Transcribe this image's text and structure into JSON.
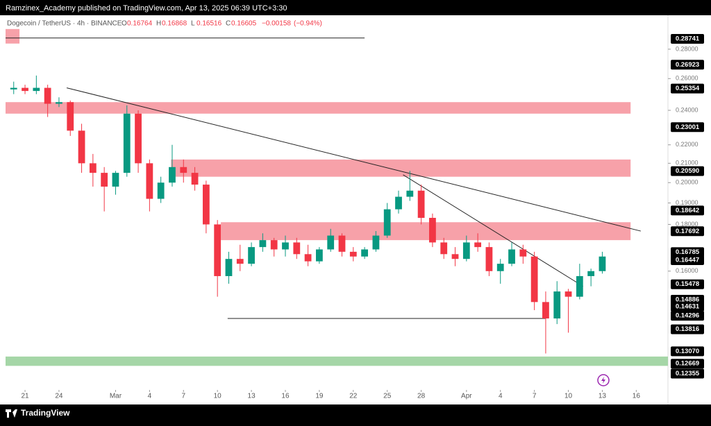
{
  "header": {
    "text": "Ramzinex_Academy published on TradingView.com, Apr 13, 2025 06:39 UTC+3:30"
  },
  "footer": {
    "brand": "TradingView"
  },
  "chart_data": {
    "type": "candlestick",
    "symbol": "Dogecoin / TetherUS · 4h · BINANCE",
    "ohlc_legend": [
      {
        "label": "O",
        "value": 0.16764
      },
      {
        "label": "H",
        "value": 0.16868
      },
      {
        "label": "L",
        "value": 0.16516
      },
      {
        "label": "C",
        "value": 0.16605
      }
    ],
    "change": {
      "value": -0.00158,
      "label": "−0.00158"
    },
    "change_pct": {
      "value": -0.94,
      "label": "(−0.94%)"
    },
    "log_scale": true,
    "up_color": "#089981",
    "down_color": "#f23645",
    "xlim": [
      -1.72,
      56.8
    ],
    "ylim": [
      0.119,
      0.305
    ],
    "xticks": [
      {
        "value": 0,
        "label": "21"
      },
      {
        "value": 3,
        "label": "24"
      },
      {
        "value": 8,
        "label": "Mar"
      },
      {
        "value": 11,
        "label": "4"
      },
      {
        "value": 14,
        "label": "7"
      },
      {
        "value": 17,
        "label": "10"
      },
      {
        "value": 20,
        "label": "13"
      },
      {
        "value": 23,
        "label": "16"
      },
      {
        "value": 26,
        "label": "19"
      },
      {
        "value": 29,
        "label": "22"
      },
      {
        "value": 32,
        "label": "25"
      },
      {
        "value": 35,
        "label": "28"
      },
      {
        "value": 39,
        "label": "Apr"
      },
      {
        "value": 42,
        "label": "4"
      },
      {
        "value": 45,
        "label": "7"
      },
      {
        "value": 48,
        "label": "10"
      },
      {
        "value": 51,
        "label": "13"
      },
      {
        "value": 54,
        "label": "16"
      }
    ],
    "yticks": [
      {
        "value": 0.28,
        "label": "0.28000"
      },
      {
        "value": 0.26,
        "label": "0.26000"
      },
      {
        "value": 0.24,
        "label": "0.24000"
      },
      {
        "value": 0.22,
        "label": "0.22000"
      },
      {
        "value": 0.21,
        "label": "0.21000"
      },
      {
        "value": 0.2,
        "label": "0.20000"
      },
      {
        "value": 0.19,
        "label": "0.19000"
      },
      {
        "value": 0.18,
        "label": "0.18000"
      },
      {
        "value": 0.16,
        "label": "0.16000"
      }
    ],
    "price_labels": [
      {
        "value": 0.28741,
        "label": "0.28741"
      },
      {
        "value": 0.26923,
        "label": "0.26923"
      },
      {
        "value": 0.25354,
        "label": "0.25354"
      },
      {
        "value": 0.23001,
        "label": "0.23001"
      },
      {
        "value": 0.2059,
        "label": "0.20590"
      },
      {
        "value": 0.18642,
        "label": "0.18642"
      },
      {
        "value": 0.17692,
        "label": "0.17692"
      },
      {
        "value": 0.16785,
        "label": "0.16785"
      },
      {
        "value": 0.16447,
        "label": "0.16447"
      },
      {
        "value": 0.15478,
        "label": "0.15478"
      },
      {
        "value": 0.14886,
        "label": "0.14886"
      },
      {
        "value": 0.14631,
        "label": "0.14631"
      },
      {
        "value": 0.14296,
        "label": "0.14296"
      },
      {
        "value": 0.13816,
        "label": "0.13816"
      },
      {
        "value": 0.1307,
        "label": "0.13070"
      },
      {
        "value": 0.12669,
        "label": "0.12669"
      },
      {
        "value": 0.12355,
        "label": "0.12355"
      }
    ],
    "zones": [
      {
        "x": [
          -1.72,
          -0.49
        ],
        "y": [
          0.284,
          0.2946
        ],
        "color": "#f7a1a9"
      },
      {
        "x": [
          -1.72,
          53.5
        ],
        "y": [
          0.238,
          0.245
        ],
        "color": "#f7a1a9"
      },
      {
        "x": [
          12.9,
          53.5
        ],
        "y": [
          0.203,
          0.212
        ],
        "color": "#f7a1a9"
      },
      {
        "x": [
          17.3,
          53.5
        ],
        "y": [
          0.173,
          0.181
        ],
        "color": "#f7a1a9"
      },
      {
        "x": [
          -1.72,
          56.8
        ],
        "y": [
          0.126,
          0.129
        ],
        "color": "#a5d6a7"
      }
    ],
    "lines": [
      {
        "x": [
          -1.72,
          30.0
        ],
        "y": [
          0.288,
          0.288
        ]
      },
      {
        "x": [
          3.68,
          54.4
        ],
        "y": [
          0.254,
          0.177
        ]
      },
      {
        "x": [
          33.4,
          49.3
        ],
        "y": [
          0.204,
          0.154
        ]
      },
      {
        "x": [
          17.9,
          46.0
        ],
        "y": [
          0.142,
          0.142
        ]
      }
    ],
    "candles": {
      "x": [
        -1,
        0,
        1,
        2,
        3,
        4,
        5,
        6,
        7,
        8,
        9,
        10,
        11,
        12,
        13,
        14,
        15,
        16,
        17,
        18,
        19,
        20,
        21,
        22,
        23,
        24,
        25,
        26,
        27,
        28,
        29,
        30,
        31,
        32,
        33,
        34,
        35,
        36,
        37,
        38,
        39,
        40,
        41,
        42,
        43,
        44,
        45,
        46,
        47,
        48,
        49,
        50,
        51
      ],
      "open": [
        0.253,
        0.254,
        0.252,
        0.254,
        0.244,
        0.245,
        0.228,
        0.21,
        0.205,
        0.198,
        0.205,
        0.238,
        0.21,
        0.192,
        0.2,
        0.208,
        0.205,
        0.199,
        0.18,
        0.158,
        0.165,
        0.163,
        0.17,
        0.173,
        0.169,
        0.172,
        0.167,
        0.164,
        0.169,
        0.175,
        0.168,
        0.166,
        0.169,
        0.175,
        0.187,
        0.193,
        0.196,
        0.183,
        0.172,
        0.167,
        0.165,
        0.172,
        0.17,
        0.16,
        0.163,
        0.169,
        0.166,
        0.148,
        0.142,
        0.152,
        0.15,
        0.158,
        0.16
      ],
      "high": [
        0.258,
        0.256,
        0.262,
        0.256,
        0.248,
        0.246,
        0.232,
        0.215,
        0.208,
        0.206,
        0.243,
        0.24,
        0.212,
        0.203,
        0.22,
        0.212,
        0.208,
        0.201,
        0.182,
        0.168,
        0.171,
        0.172,
        0.176,
        0.174,
        0.175,
        0.174,
        0.171,
        0.17,
        0.178,
        0.176,
        0.17,
        0.17,
        0.177,
        0.19,
        0.196,
        0.206,
        0.199,
        0.185,
        0.174,
        0.17,
        0.175,
        0.176,
        0.172,
        0.165,
        0.172,
        0.171,
        0.168,
        0.152,
        0.156,
        0.153,
        0.163,
        0.161,
        0.168
      ],
      "low": [
        0.25,
        0.25,
        0.25,
        0.236,
        0.242,
        0.225,
        0.205,
        0.198,
        0.186,
        0.194,
        0.203,
        0.205,
        0.186,
        0.19,
        0.198,
        0.2,
        0.196,
        0.176,
        0.15,
        0.155,
        0.16,
        0.162,
        0.168,
        0.166,
        0.166,
        0.165,
        0.162,
        0.163,
        0.168,
        0.166,
        0.164,
        0.165,
        0.168,
        0.174,
        0.185,
        0.191,
        0.18,
        0.17,
        0.165,
        0.162,
        0.164,
        0.168,
        0.158,
        0.155,
        0.162,
        0.163,
        0.145,
        0.13,
        0.14,
        0.137,
        0.149,
        0.154,
        0.159
      ],
      "close": [
        0.254,
        0.252,
        0.254,
        0.244,
        0.245,
        0.228,
        0.21,
        0.205,
        0.198,
        0.205,
        0.238,
        0.21,
        0.192,
        0.2,
        0.208,
        0.205,
        0.199,
        0.18,
        0.158,
        0.165,
        0.163,
        0.17,
        0.173,
        0.169,
        0.172,
        0.167,
        0.164,
        0.169,
        0.175,
        0.168,
        0.166,
        0.169,
        0.175,
        0.187,
        0.193,
        0.196,
        0.183,
        0.172,
        0.167,
        0.165,
        0.172,
        0.17,
        0.16,
        0.163,
        0.169,
        0.166,
        0.148,
        0.142,
        0.152,
        0.15,
        0.158,
        0.16,
        0.166
      ]
    }
  }
}
